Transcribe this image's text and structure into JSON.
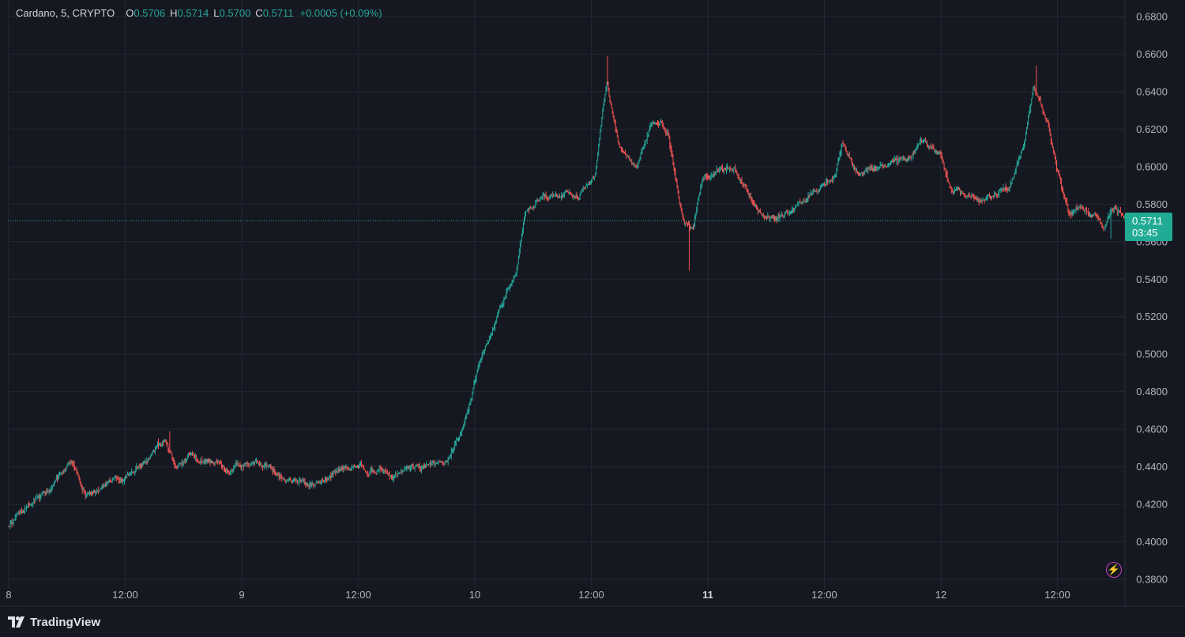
{
  "legend": {
    "symbol": "Cardano, 5, CRYPTO",
    "o_label": "O",
    "o_value": "0.5706",
    "h_label": "H",
    "h_value": "0.5714",
    "l_label": "L",
    "l_value": "0.5700",
    "c_label": "C",
    "c_value": "0.5711",
    "change": "+0.0005 (+0.09%)"
  },
  "price_tag": {
    "price": "0.5711",
    "countdown": "03:45"
  },
  "footer": {
    "brand": "TradingView"
  },
  "colors": {
    "background": "#151821",
    "grid": "#232733",
    "up": "#26a69a",
    "down": "#ef5350",
    "text": "#b2b5be"
  },
  "icons": {
    "brand_logo": "tradingview-logo-icon",
    "flash": "lightning-icon"
  },
  "chart_data": {
    "type": "candlestick",
    "interval": "5",
    "ylim": [
      0.38,
      0.68
    ],
    "y_ticks": [
      "0.3800",
      "0.4000",
      "0.4200",
      "0.4400",
      "0.4600",
      "0.4800",
      "0.5000",
      "0.5200",
      "0.5400",
      "0.5600",
      "0.5800",
      "0.6000",
      "0.6200",
      "0.6400",
      "0.6600",
      "0.6800"
    ],
    "x_ticks": [
      {
        "label": "8",
        "day": 0.0,
        "bold": false
      },
      {
        "label": "12:00",
        "day": 0.5,
        "bold": false
      },
      {
        "label": "9",
        "day": 1.0,
        "bold": false
      },
      {
        "label": "12:00",
        "day": 1.5,
        "bold": false
      },
      {
        "label": "10",
        "day": 2.0,
        "bold": false
      },
      {
        "label": "12:00",
        "day": 2.5,
        "bold": false
      },
      {
        "label": "11",
        "day": 3.0,
        "bold": true
      },
      {
        "label": "12:00",
        "day": 3.5,
        "bold": false
      },
      {
        "label": "12",
        "day": 4.0,
        "bold": false
      },
      {
        "label": "12:00",
        "day": 4.5,
        "bold": false
      }
    ],
    "x_range_days": [
      0.0,
      4.9
    ],
    "last_price": 0.5711,
    "price_path": [
      [
        0.0,
        0.408
      ],
      [
        0.08,
        0.418
      ],
      [
        0.18,
        0.428
      ],
      [
        0.28,
        0.442
      ],
      [
        0.33,
        0.426
      ],
      [
        0.5,
        0.433
      ],
      [
        0.62,
        0.445
      ],
      [
        0.68,
        0.456
      ],
      [
        0.72,
        0.44
      ],
      [
        0.78,
        0.448
      ],
      [
        0.95,
        0.438
      ],
      [
        1.05,
        0.444
      ],
      [
        1.2,
        0.432
      ],
      [
        1.3,
        0.43
      ],
      [
        1.45,
        0.439
      ],
      [
        1.55,
        0.44
      ],
      [
        1.65,
        0.435
      ],
      [
        1.82,
        0.44
      ],
      [
        1.9,
        0.445
      ],
      [
        1.97,
        0.468
      ],
      [
        2.03,
        0.5
      ],
      [
        2.1,
        0.52
      ],
      [
        2.18,
        0.545
      ],
      [
        2.22,
        0.575
      ],
      [
        2.3,
        0.585
      ],
      [
        2.45,
        0.585
      ],
      [
        2.52,
        0.595
      ],
      [
        2.57,
        0.645
      ],
      [
        2.62,
        0.612
      ],
      [
        2.7,
        0.598
      ],
      [
        2.76,
        0.622
      ],
      [
        2.83,
        0.62
      ],
      [
        2.9,
        0.57
      ],
      [
        2.94,
        0.565
      ],
      [
        2.98,
        0.595
      ],
      [
        3.05,
        0.598
      ],
      [
        3.12,
        0.6
      ],
      [
        3.22,
        0.578
      ],
      [
        3.3,
        0.572
      ],
      [
        3.4,
        0.58
      ],
      [
        3.55,
        0.595
      ],
      [
        3.58,
        0.612
      ],
      [
        3.65,
        0.595
      ],
      [
        3.7,
        0.6
      ],
      [
        3.85,
        0.603
      ],
      [
        3.92,
        0.612
      ],
      [
        4.0,
        0.605
      ],
      [
        4.05,
        0.585
      ],
      [
        4.2,
        0.583
      ],
      [
        4.3,
        0.59
      ],
      [
        4.36,
        0.612
      ],
      [
        4.4,
        0.642
      ],
      [
        4.46,
        0.625
      ],
      [
        4.5,
        0.6
      ],
      [
        4.55,
        0.578
      ],
      [
        4.62,
        0.58
      ],
      [
        4.7,
        0.567
      ],
      [
        4.75,
        0.578
      ],
      [
        4.78,
        0.572
      ],
      [
        4.8,
        0.5711
      ]
    ],
    "spikes": [
      {
        "day": 2.57,
        "high": 0.659
      },
      {
        "day": 2.92,
        "low": 0.5445
      },
      {
        "day": 4.41,
        "high": 0.654
      },
      {
        "day": 0.69,
        "high": 0.459
      },
      {
        "day": 4.73,
        "low": 0.5615
      }
    ]
  }
}
